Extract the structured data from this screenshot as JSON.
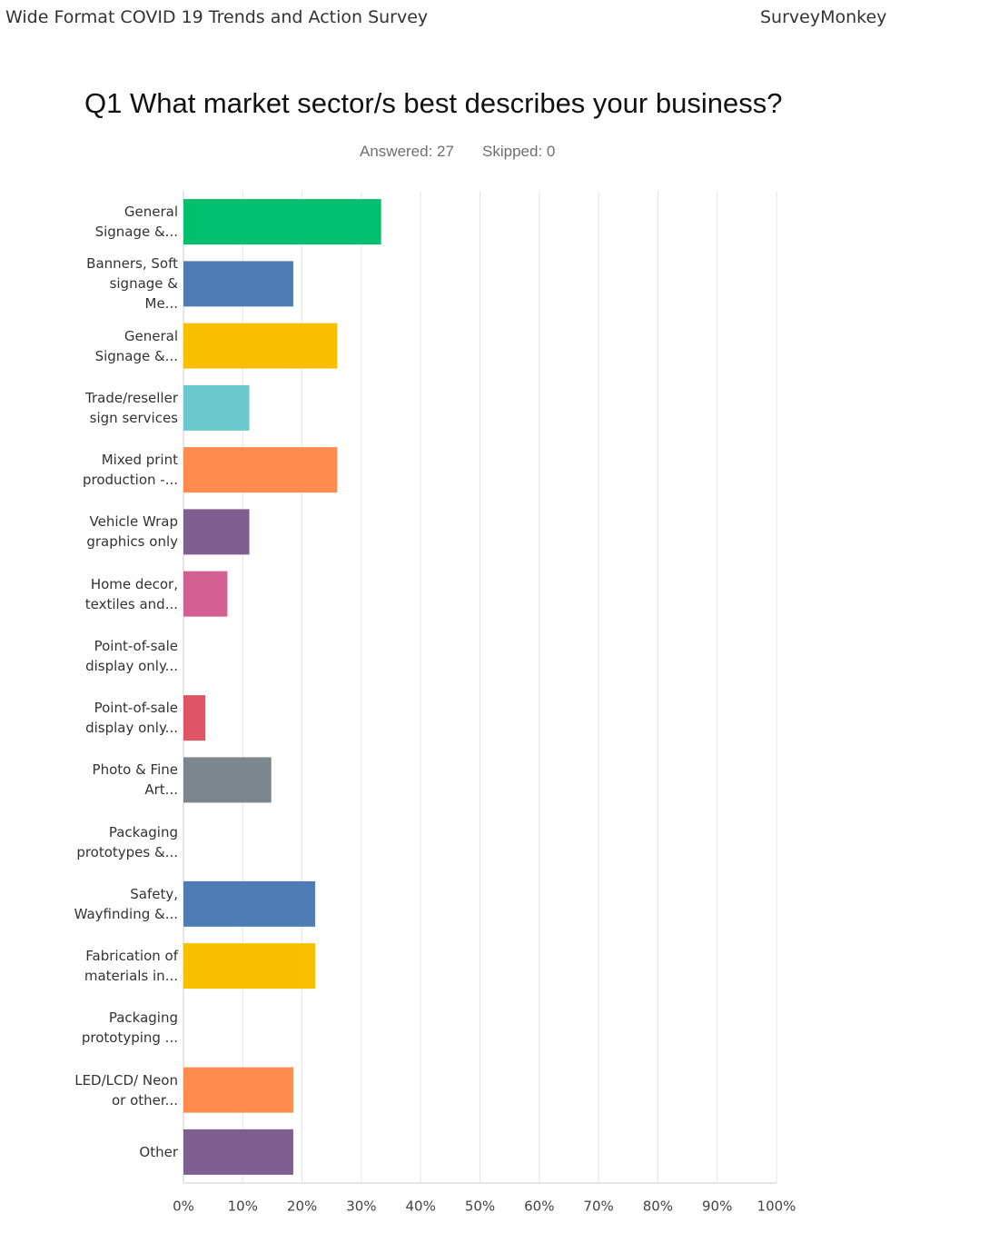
{
  "header": {
    "survey_title": "Wide Format COVID 19 Trends and Action Survey",
    "brand": "SurveyMonkey"
  },
  "chart_data": {
    "type": "bar",
    "orientation": "horizontal",
    "title": "Q1 What market sector/s best describes your business?",
    "answered": "Answered: 27",
    "skipped": "Skipped: 0",
    "categories": [
      "General Signage &...",
      "Banners, Soft signage & Me...",
      "General Signage &...",
      "Trade/reseller sign services",
      "Mixed print production -...",
      "Vehicle Wrap graphics only",
      "Home decor, textiles and...",
      "Point-of-sale display only...",
      "Point-of-sale display only...",
      "Photo & Fine Art...",
      "Packaging prototypes &...",
      "Safety, Wayfinding &...",
      "Fabrication of materials in...",
      "Packaging prototyping ...",
      "LED/LCD/ Neon or other...",
      "Other"
    ],
    "values": [
      33.33,
      18.52,
      25.93,
      11.11,
      25.93,
      11.11,
      7.41,
      0,
      3.7,
      14.81,
      0,
      22.22,
      22.22,
      0,
      18.52,
      18.52
    ],
    "colors": [
      "#00bf6f",
      "#507cb6",
      "#f9be00",
      "#6bc8cd",
      "#ff8b4f",
      "#7f5f90",
      "#d25f90",
      "#507cb6",
      "#e05566",
      "#7d868c",
      "#00bf6f",
      "#507cb6",
      "#f9be00",
      "#6bc8cd",
      "#ff8b4f",
      "#7f5f90"
    ],
    "xlim": [
      0,
      100
    ],
    "xticks": [
      {
        "value": 0,
        "label": "0%"
      },
      {
        "value": 10,
        "label": "10%"
      },
      {
        "value": 20,
        "label": "20%"
      },
      {
        "value": 30,
        "label": "30%"
      },
      {
        "value": 40,
        "label": "40%"
      },
      {
        "value": 50,
        "label": "50%"
      },
      {
        "value": 60,
        "label": "60%"
      },
      {
        "value": 70,
        "label": "70%"
      },
      {
        "value": 80,
        "label": "80%"
      },
      {
        "value": 90,
        "label": "90%"
      },
      {
        "value": 100,
        "label": "100%"
      }
    ],
    "grid": true
  }
}
